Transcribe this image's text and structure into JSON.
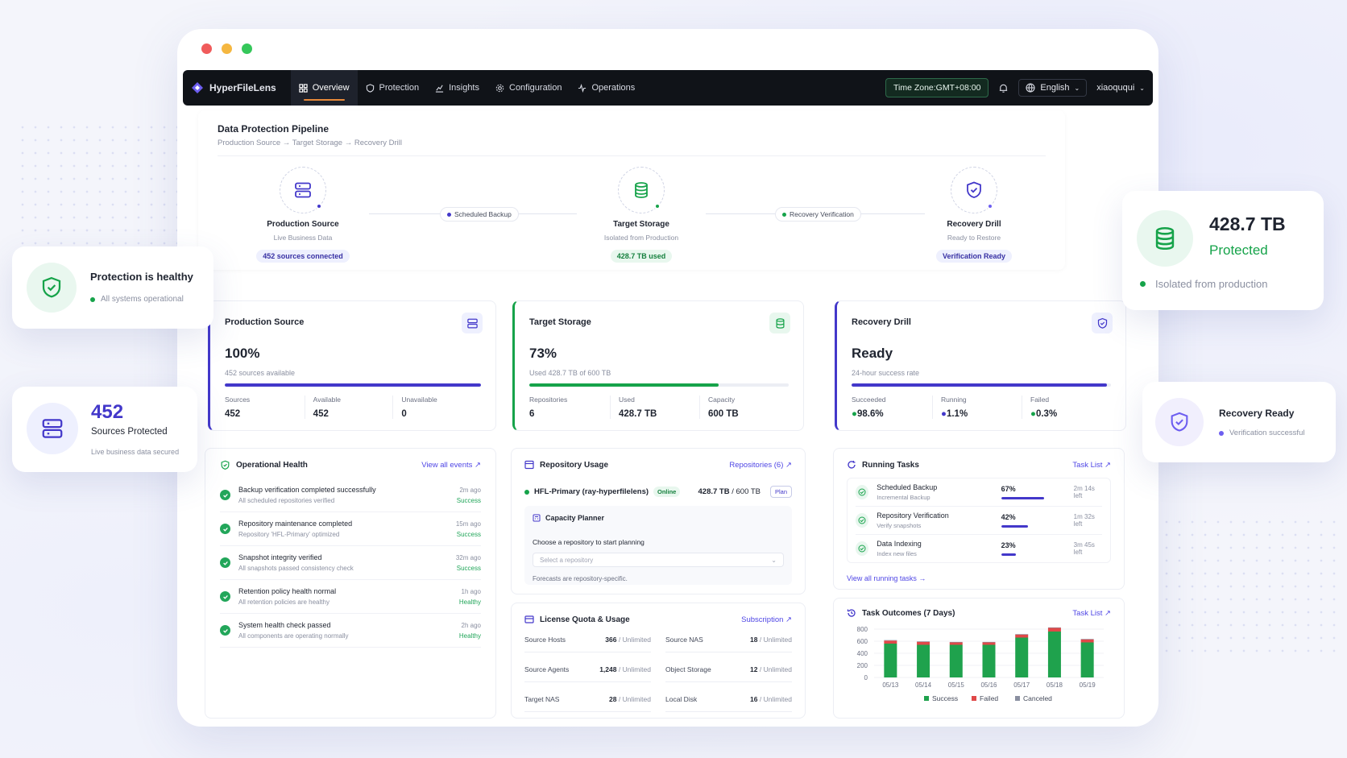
{
  "app": {
    "name": "HyperFileLens",
    "time_zone": "Time Zone:GMT+08:00",
    "language": "English",
    "user": "xiaoququi"
  },
  "nav": [
    {
      "label": "Overview",
      "icon": "grid-icon"
    },
    {
      "label": "Protection",
      "icon": "shield-icon"
    },
    {
      "label": "Insights",
      "icon": "chart-icon"
    },
    {
      "label": "Configuration",
      "icon": "gear-icon"
    },
    {
      "label": "Operations",
      "icon": "pulse-icon"
    }
  ],
  "pipeline": {
    "title": "Data Protection Pipeline",
    "breadcrumb": "Production Source → Target Storage → Recovery Drill",
    "nodes": [
      {
        "title": "Production Source",
        "sub": "Live Business Data",
        "badge": "452 sources connected"
      },
      {
        "title": "Target Storage",
        "sub": "Isolated from Production",
        "badge": "428.7 TB used"
      },
      {
        "title": "Recovery Drill",
        "sub": "Ready to Restore",
        "badge": "Verification Ready"
      }
    ],
    "links": [
      "Scheduled Backup",
      "Recovery Verification"
    ]
  },
  "cards": [
    {
      "title": "Production Source",
      "value": "100%",
      "desc": "452 sources available",
      "progress": 100,
      "color": "#4338ca",
      "stats": [
        {
          "label": "Sources",
          "value": "452"
        },
        {
          "label": "Available",
          "value": "452"
        },
        {
          "label": "Unavailable",
          "value": "0"
        }
      ]
    },
    {
      "title": "Target Storage",
      "value": "73%",
      "desc": "Used 428.7 TB of 600 TB",
      "progress": 73,
      "color": "#16a34a",
      "stats": [
        {
          "label": "Repositories",
          "value": "6"
        },
        {
          "label": "Used",
          "value": "428.7 TB"
        },
        {
          "label": "Capacity",
          "value": "600 TB"
        }
      ]
    },
    {
      "title": "Recovery Drill",
      "value": "Ready",
      "desc": "24-hour success rate",
      "progress": 98.6,
      "color": "#4338ca",
      "stats": [
        {
          "label": "Succeeded",
          "value": "98.6%"
        },
        {
          "label": "Running",
          "value": "1.1%"
        },
        {
          "label": "Failed",
          "value": "0.3%"
        }
      ]
    }
  ],
  "health": {
    "title": "Operational Health",
    "link": "View all events",
    "events": [
      {
        "title": "Backup verification completed successfully",
        "sub": "All scheduled repositories verified",
        "time": "2m ago",
        "status": "Success"
      },
      {
        "title": "Repository maintenance completed",
        "sub": "Repository 'HFL-Primary' optimized",
        "time": "15m ago",
        "status": "Success"
      },
      {
        "title": "Snapshot integrity verified",
        "sub": "All snapshots passed consistency check",
        "time": "32m ago",
        "status": "Success"
      },
      {
        "title": "Retention policy health normal",
        "sub": "All retention policies are healthy",
        "time": "1h ago",
        "status": "Healthy"
      },
      {
        "title": "System health check passed",
        "sub": "All components are operating normally",
        "time": "2h ago",
        "status": "Healthy"
      }
    ]
  },
  "repo": {
    "title": "Repository Usage",
    "link": "Repositories (6)",
    "name": "HFL-Primary (ray-hyperfilelens)",
    "status": "Online",
    "used": "428.7 TB",
    "total": "/ 600 TB",
    "plan": "Plan",
    "planner_title": "Capacity Planner",
    "planner_label": "Choose a repository to start planning",
    "placeholder": "Select a repository",
    "note": "Forecasts are repository-specific."
  },
  "license": {
    "title": "License Quota & Usage",
    "link": "Subscription",
    "rows": [
      {
        "label": "Source Hosts",
        "value": "366",
        "limit": "/ Unlimited"
      },
      {
        "label": "Source NAS",
        "value": "18",
        "limit": "/ Unlimited"
      },
      {
        "label": "Source Agents",
        "value": "1,248",
        "limit": "/ Unlimited"
      },
      {
        "label": "Object Storage",
        "value": "12",
        "limit": "/ Unlimited"
      },
      {
        "label": "Target NAS",
        "value": "28",
        "limit": "/ Unlimited"
      },
      {
        "label": "Local Disk",
        "value": "16",
        "limit": "/ Unlimited"
      }
    ]
  },
  "tasks": {
    "title": "Running Tasks",
    "link": "Task List",
    "footer": "View all running tasks",
    "items": [
      {
        "title": "Scheduled Backup",
        "sub": "Incremental Backup",
        "pct": "67%",
        "progress": 67,
        "left": "2m 14s left"
      },
      {
        "title": "Repository Verification",
        "sub": "Verify snapshots",
        "pct": "42%",
        "progress": 42,
        "left": "1m 32s left"
      },
      {
        "title": "Data Indexing",
        "sub": "Index new files",
        "pct": "23%",
        "progress": 23,
        "left": "3m 45s left"
      }
    ]
  },
  "outcomes": {
    "title": "Task Outcomes (7 Days)",
    "link": "Task List"
  },
  "chart_data": {
    "type": "bar",
    "stacked": true,
    "categories": [
      "05/13",
      "05/14",
      "05/15",
      "05/16",
      "05/17",
      "05/18",
      "05/19"
    ],
    "yticks": [
      "800",
      "600",
      "400",
      "200",
      "0"
    ],
    "ylim": [
      0,
      800
    ],
    "series": [
      {
        "name": "Success",
        "color": "#1fa24d",
        "values": [
          560,
          540,
          540,
          540,
          660,
          760,
          580
        ]
      },
      {
        "name": "Failed",
        "color": "#e04848",
        "values": [
          50,
          50,
          40,
          40,
          50,
          60,
          50
        ]
      },
      {
        "name": "Canceled",
        "color": "#8a8fa0",
        "values": [
          8,
          8,
          8,
          8,
          8,
          8,
          8
        ]
      }
    ]
  },
  "floats": {
    "healthy_title": "Protection is healthy",
    "healthy_sub": "All systems operational",
    "sources_value": "452",
    "sources_label": "Sources Protected",
    "sources_sub": "Live business data secured",
    "tb_value": "428.7 TB",
    "tb_label": "Protected",
    "tb_sub": "Isolated from production",
    "ready_title": "Recovery Ready",
    "ready_sub": "Verification successful"
  }
}
